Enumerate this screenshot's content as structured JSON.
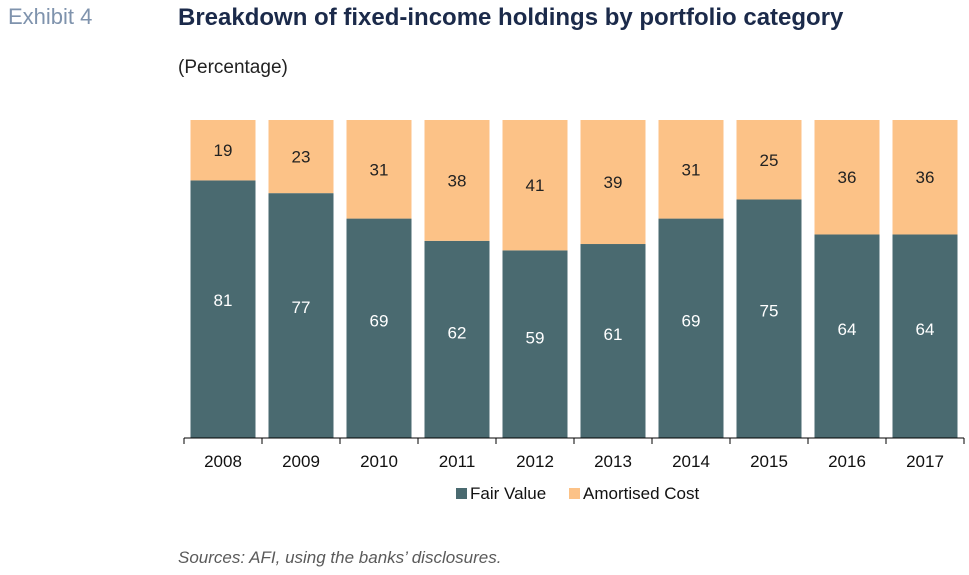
{
  "exhibit_label": "Exhibit 4",
  "source_note": "Sources: AFI, using the banks’ disclosures.",
  "colors": {
    "fair_value": "#4a6a70",
    "amortised_cost": "#fcc287"
  },
  "chart_data": {
    "type": "bar",
    "stacked": true,
    "title": "Breakdown of fixed-income holdings by portfolio category",
    "subtitle": "(Percentage)",
    "categories": [
      "2008",
      "2009",
      "2010",
      "2011",
      "2012",
      "2013",
      "2014",
      "2015",
      "2016",
      "2017"
    ],
    "series": [
      {
        "name": "Fair Value",
        "values": [
          81,
          77,
          69,
          62,
          59,
          61,
          69,
          75,
          64,
          64
        ]
      },
      {
        "name": "Amortised Cost",
        "values": [
          19,
          23,
          31,
          38,
          41,
          39,
          31,
          25,
          36,
          36
        ]
      }
    ],
    "ylim": [
      0,
      100
    ],
    "xlabel": "",
    "ylabel": "",
    "grid": false,
    "legend": "bottom"
  }
}
